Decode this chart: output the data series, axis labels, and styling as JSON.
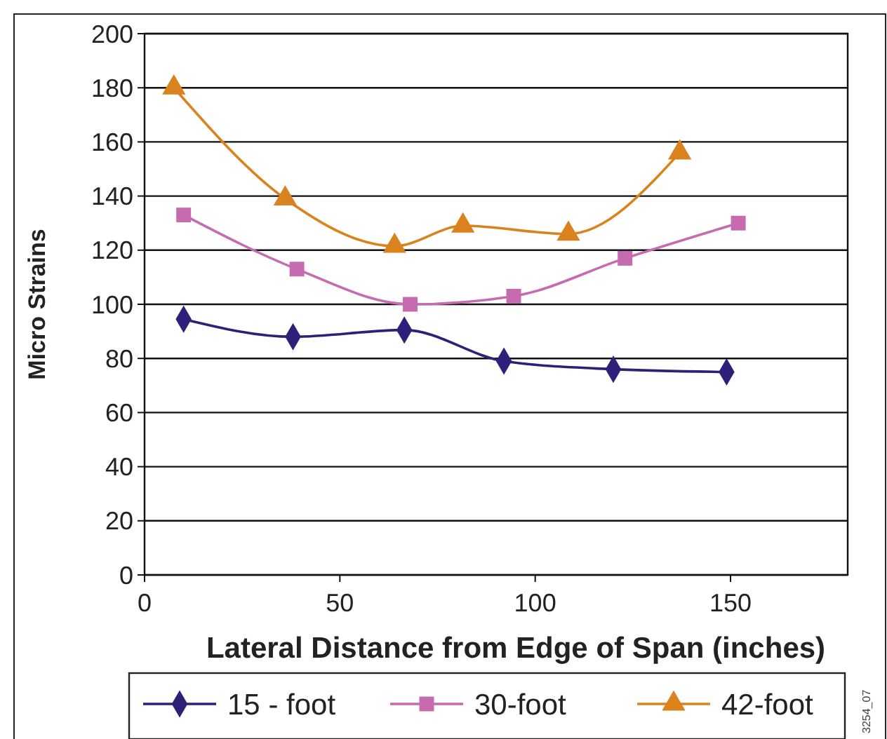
{
  "chart_data": {
    "type": "line",
    "xlabel": "Lateral Distance from Edge of Span (inches)",
    "ylabel": "Micro Strains",
    "xlim": [
      0,
      180
    ],
    "xticks": [
      0,
      50,
      100,
      150
    ],
    "ylim": [
      0,
      200
    ],
    "yticks": [
      0,
      20,
      40,
      60,
      80,
      100,
      120,
      140,
      160,
      180,
      200
    ],
    "grid": "y",
    "legend": "bottom",
    "line_style": "solid",
    "series": [
      {
        "name": "15 - foot",
        "color": "#2e1f78",
        "marker": "diamond",
        "x": [
          10,
          38,
          66.5,
          92,
          120,
          149
        ],
        "values": [
          94.5,
          88,
          90.5,
          79,
          76,
          75
        ]
      },
      {
        "name": "30-foot",
        "color": "#c66bb0",
        "marker": "square",
        "x": [
          10,
          39,
          68,
          94.5,
          123,
          152
        ],
        "values": [
          133,
          113,
          100,
          103,
          117,
          130
        ]
      },
      {
        "name": "42-foot",
        "color": "#d9821e",
        "marker": "triangle",
        "x": [
          7.5,
          36,
          64,
          81.5,
          108.5,
          137
        ],
        "values": [
          180,
          139,
          121.5,
          129,
          126,
          156
        ]
      }
    ],
    "annotations": [
      "3254_07"
    ]
  }
}
